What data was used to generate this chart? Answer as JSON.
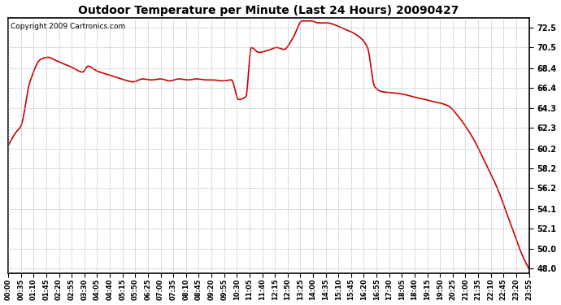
{
  "title": "Outdoor Temperature per Minute (Last 24 Hours) 20090427",
  "copyright": "Copyright 2009 Cartronics.com",
  "line_color": "#cc0000",
  "bg_color": "#ffffff",
  "plot_bg_color": "#ffffff",
  "grid_color": "#aaaaaa",
  "ylim": [
    47.5,
    73.5
  ],
  "yticks": [
    48.0,
    50.0,
    52.1,
    54.1,
    56.2,
    58.2,
    60.2,
    62.3,
    64.3,
    66.4,
    68.4,
    70.5,
    72.5
  ],
  "xtick_labels": [
    "00:00",
    "00:35",
    "01:10",
    "01:45",
    "02:20",
    "02:55",
    "03:30",
    "04:05",
    "04:40",
    "05:15",
    "05:50",
    "06:25",
    "07:00",
    "07:35",
    "08:10",
    "08:45",
    "09:20",
    "09:55",
    "10:30",
    "11:05",
    "11:40",
    "12:15",
    "12:50",
    "13:25",
    "14:00",
    "14:35",
    "15:10",
    "15:45",
    "16:20",
    "16:55",
    "17:30",
    "18:05",
    "18:40",
    "19:15",
    "19:50",
    "20:25",
    "21:00",
    "21:35",
    "22:10",
    "22:45",
    "23:20",
    "23:55"
  ],
  "detailed_x": [
    0,
    20,
    35,
    60,
    90,
    110,
    130,
    155,
    175,
    205,
    220,
    245,
    270,
    295,
    320,
    345,
    370,
    395,
    420,
    445,
    470,
    495,
    520,
    545,
    565,
    590,
    615,
    635,
    655,
    670,
    690,
    715,
    740,
    760,
    785,
    810,
    835,
    855,
    880,
    900,
    925,
    950,
    970,
    990,
    1010,
    1030,
    1055,
    1080,
    1105,
    1125,
    1150,
    1170,
    1195,
    1215,
    1240,
    1260,
    1285,
    1305,
    1325,
    1350,
    1370,
    1395,
    1415,
    1435
  ],
  "detailed_y": [
    60.5,
    61.8,
    62.5,
    67.0,
    69.3,
    69.5,
    69.2,
    68.8,
    68.5,
    68.0,
    68.6,
    68.1,
    67.8,
    67.5,
    67.2,
    67.0,
    67.3,
    67.2,
    67.3,
    67.1,
    67.3,
    67.2,
    67.3,
    67.2,
    67.2,
    67.1,
    67.2,
    65.2,
    65.5,
    70.5,
    70.0,
    70.2,
    70.5,
    70.3,
    71.5,
    73.2,
    73.2,
    73.0,
    73.0,
    72.8,
    72.4,
    72.0,
    71.5,
    70.5,
    66.5,
    66.0,
    65.9,
    65.8,
    65.6,
    65.4,
    65.2,
    65.0,
    64.8,
    64.5,
    63.5,
    62.5,
    61.0,
    59.5,
    58.0,
    56.0,
    54.0,
    51.5,
    49.5,
    48.0
  ]
}
